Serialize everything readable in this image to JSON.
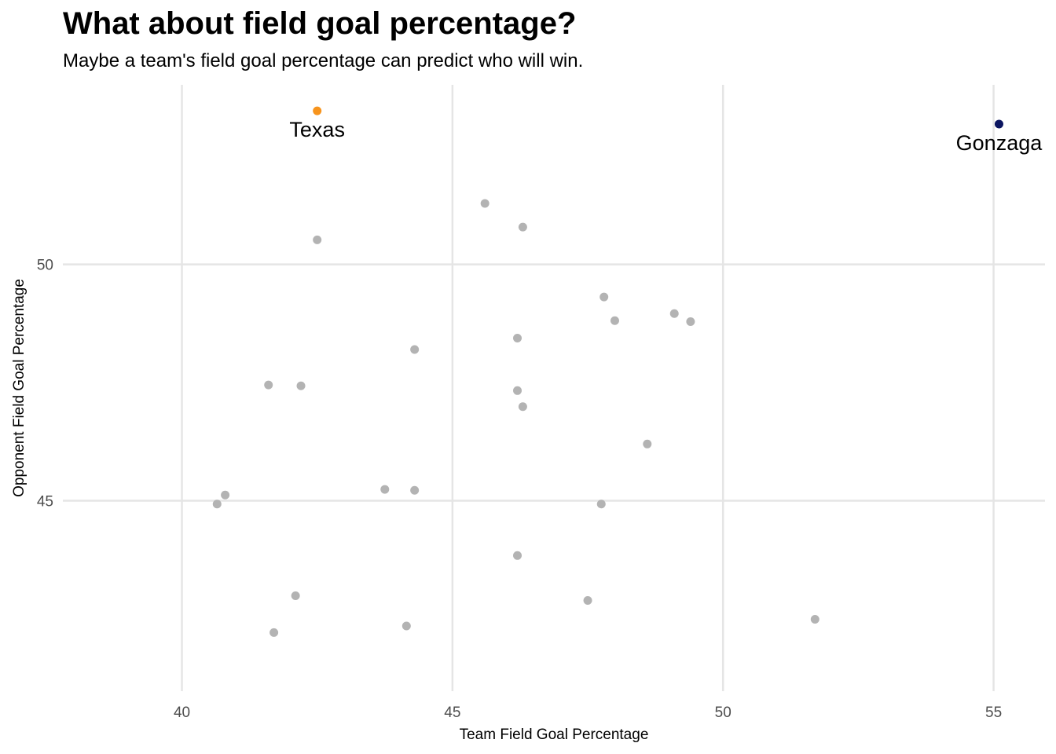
{
  "chart_data": {
    "type": "scatter",
    "title": "What about field goal percentage?",
    "subtitle": "Maybe a team's field goal percentage can predict who will win.",
    "xlabel": "Team Field Goal Percentage",
    "ylabel": "Opponent Field Goal Percentage",
    "xlim": [
      37.8,
      55.95
    ],
    "ylim": [
      40.97,
      53.8
    ],
    "xticks": [
      40,
      45,
      50,
      55
    ],
    "yticks": [
      45,
      50
    ],
    "grid": true,
    "colors": {
      "default": "#b3b3b3",
      "highlight_1": "#f7941d",
      "highlight_2": "#0b1560",
      "grid": "#e5e5e5"
    },
    "points": [
      {
        "x": 40.65,
        "y": 44.93
      },
      {
        "x": 40.8,
        "y": 45.12
      },
      {
        "x": 41.6,
        "y": 47.45
      },
      {
        "x": 41.7,
        "y": 42.21
      },
      {
        "x": 42.1,
        "y": 42.99
      },
      {
        "x": 42.2,
        "y": 47.43
      },
      {
        "x": 42.5,
        "y": 50.52
      },
      {
        "x": 43.75,
        "y": 45.24
      },
      {
        "x": 44.15,
        "y": 42.35
      },
      {
        "x": 44.3,
        "y": 48.2
      },
      {
        "x": 44.3,
        "y": 45.22
      },
      {
        "x": 45.6,
        "y": 51.29
      },
      {
        "x": 46.2,
        "y": 48.44
      },
      {
        "x": 46.2,
        "y": 47.33
      },
      {
        "x": 46.2,
        "y": 43.84
      },
      {
        "x": 46.3,
        "y": 50.79
      },
      {
        "x": 46.3,
        "y": 46.99
      },
      {
        "x": 47.5,
        "y": 42.89
      },
      {
        "x": 47.75,
        "y": 44.93
      },
      {
        "x": 47.8,
        "y": 49.31
      },
      {
        "x": 48.0,
        "y": 48.81
      },
      {
        "x": 48.6,
        "y": 46.2
      },
      {
        "x": 49.1,
        "y": 48.96
      },
      {
        "x": 49.4,
        "y": 48.79
      },
      {
        "x": 51.7,
        "y": 42.49
      },
      {
        "x": 42.5,
        "y": 53.25,
        "label": "Texas",
        "color": "highlight_1"
      },
      {
        "x": 55.1,
        "y": 52.97,
        "label": "Gonzaga",
        "color": "highlight_2"
      }
    ]
  }
}
